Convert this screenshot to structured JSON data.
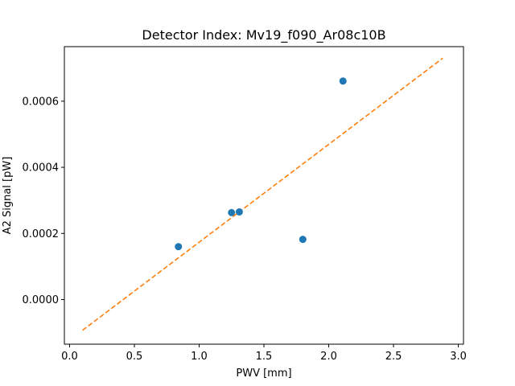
{
  "chart_data": {
    "type": "scatter",
    "title": "Detector Index: Mv19_f090_Ar08c10B",
    "xlabel": "PWV [mm]",
    "ylabel": "A2 Signal [pW]",
    "xlim": [
      -0.04,
      3.04
    ],
    "ylim": [
      -0.000135,
      0.000765
    ],
    "xticks": [
      0.0,
      0.5,
      1.0,
      1.5,
      2.0,
      2.5,
      3.0
    ],
    "xtick_labels": [
      "0.0",
      "0.5",
      "1.0",
      "1.5",
      "2.0",
      "2.5",
      "3.0"
    ],
    "yticks": [
      0.0,
      0.0002,
      0.0004,
      0.0006
    ],
    "ytick_labels": [
      "0.0000",
      "0.0002",
      "0.0004",
      "0.0006"
    ],
    "grid": false,
    "series": [
      {
        "name": "measurements",
        "kind": "scatter",
        "color": "#1f77b4",
        "x": [
          0.84,
          1.25,
          1.31,
          1.8,
          2.11
        ],
        "y": [
          0.00016,
          0.000263,
          0.000265,
          0.000182,
          0.000661
        ]
      },
      {
        "name": "fit",
        "kind": "line",
        "style": "dashed",
        "color": "#ff7f0e",
        "x": [
          0.1,
          2.88
        ],
        "y": [
          -9.3e-05,
          0.00073
        ]
      }
    ]
  }
}
